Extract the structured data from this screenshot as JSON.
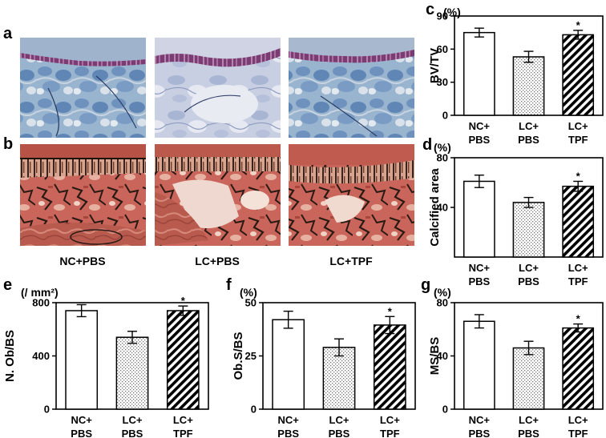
{
  "micrographs": {
    "row_labels": [
      "a",
      "b"
    ],
    "captions": [
      "NC+PBS",
      "LC+PBS",
      "LC+TPF"
    ]
  },
  "chart_data": [
    {
      "id": "c",
      "type": "bar",
      "panel_label": "c",
      "unit": "(%)",
      "ylabel": "BV/TV",
      "ylim": [
        0,
        90
      ],
      "yticks": [
        0,
        30,
        60,
        90
      ],
      "categories": [
        [
          "NC+",
          "PBS"
        ],
        [
          "LC+",
          "PBS"
        ],
        [
          "LC+",
          "TPF"
        ]
      ],
      "values": [
        75,
        53,
        73
      ],
      "errors": [
        4,
        5,
        4
      ],
      "significance": [
        "",
        "",
        "*"
      ],
      "fills": [
        "white",
        "dots",
        "hatch"
      ]
    },
    {
      "id": "d",
      "type": "bar",
      "panel_label": "d",
      "unit": "(%)",
      "ylabel": "Calcified area",
      "ylim": [
        0,
        80
      ],
      "yticks": [
        40,
        80
      ],
      "categories": [
        [
          "NC+",
          "PBS"
        ],
        [
          "LC+",
          "PBS"
        ],
        [
          "LC+",
          "TPF"
        ]
      ],
      "values": [
        61,
        44,
        57
      ],
      "errors": [
        5,
        4,
        4
      ],
      "significance": [
        "",
        "",
        "*"
      ],
      "fills": [
        "white",
        "dots",
        "hatch"
      ]
    },
    {
      "id": "e",
      "type": "bar",
      "panel_label": "e",
      "unit": "(/ mm²)",
      "ylabel": "N. Ob/BS",
      "ylim": [
        0,
        800
      ],
      "yticks": [
        0,
        400,
        800
      ],
      "categories": [
        [
          "NC+",
          "PBS"
        ],
        [
          "LC+",
          "PBS"
        ],
        [
          "LC+",
          "TPF"
        ]
      ],
      "values": [
        740,
        540,
        740
      ],
      "errors": [
        45,
        45,
        35
      ],
      "significance": [
        "",
        "",
        "*"
      ],
      "fills": [
        "white",
        "dots",
        "hatch"
      ]
    },
    {
      "id": "f",
      "type": "bar",
      "panel_label": "f",
      "unit": "(%)",
      "ylabel": "Ob.S/BS",
      "ylim": [
        0,
        50
      ],
      "yticks": [
        0,
        25,
        50
      ],
      "categories": [
        [
          "NC+",
          "PBS"
        ],
        [
          "LC+",
          "PBS"
        ],
        [
          "LC+",
          "TPF"
        ]
      ],
      "values": [
        42,
        29,
        39.5
      ],
      "errors": [
        4,
        4,
        4
      ],
      "significance": [
        "",
        "",
        "*"
      ],
      "fills": [
        "white",
        "dots",
        "hatch"
      ]
    },
    {
      "id": "g",
      "type": "bar",
      "panel_label": "g",
      "unit": "(%)",
      "ylabel": "MS/BS",
      "ylim": [
        0,
        80
      ],
      "yticks": [
        0,
        40,
        80
      ],
      "categories": [
        [
          "NC+",
          "PBS"
        ],
        [
          "LC+",
          "PBS"
        ],
        [
          "LC+",
          "TPF"
        ]
      ],
      "values": [
        66,
        46,
        61
      ],
      "errors": [
        5,
        5,
        3
      ],
      "significance": [
        "",
        "",
        "*"
      ],
      "fills": [
        "white",
        "dots",
        "hatch"
      ]
    }
  ]
}
